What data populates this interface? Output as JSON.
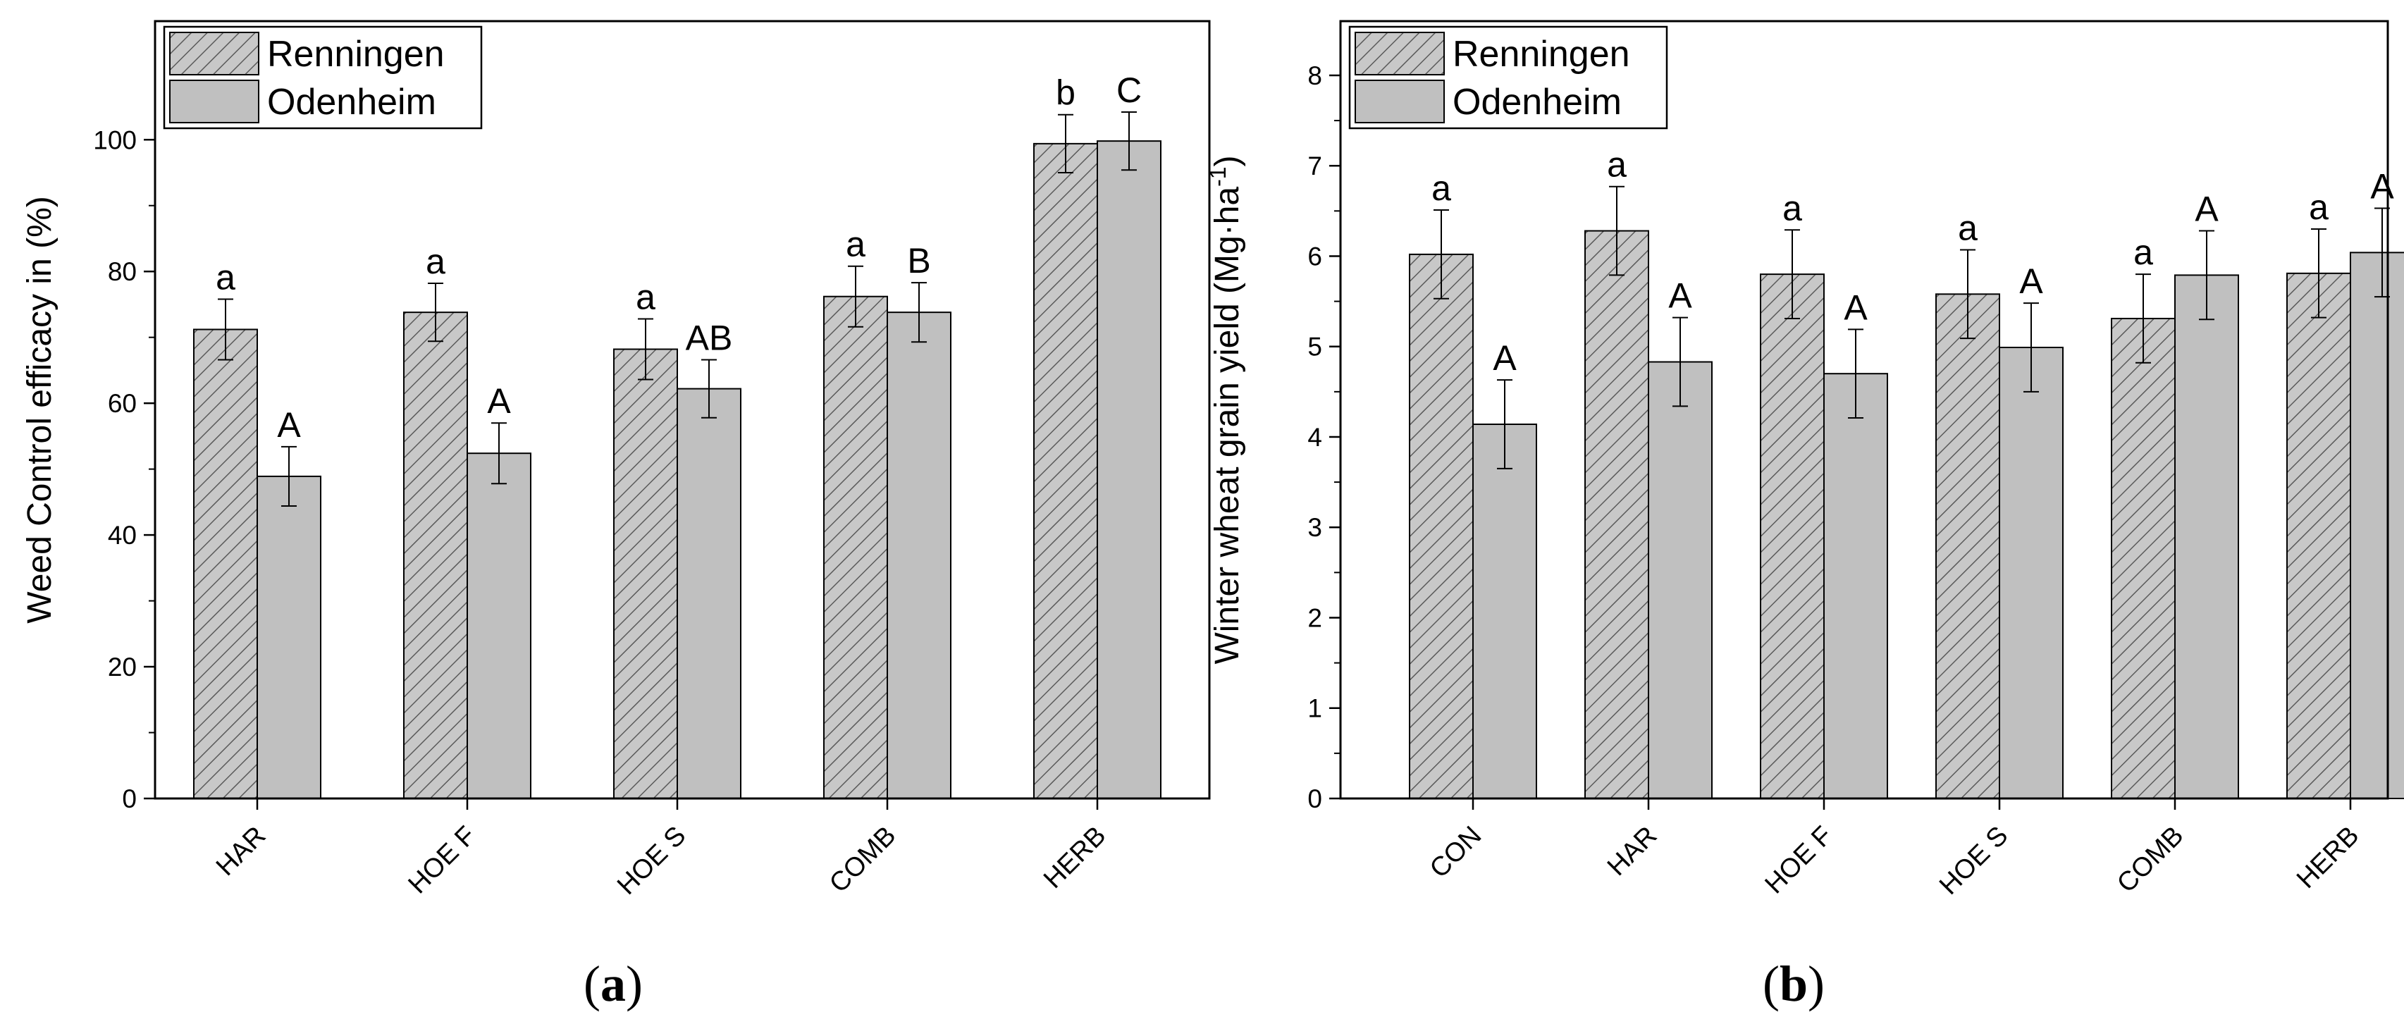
{
  "colors": {
    "bar_fill": "#c0c0c0",
    "hatch_bg": "#c8c8c8",
    "hatch_line": "#5a5a5a",
    "axis": "#000000"
  },
  "chart_data": [
    {
      "type": "bar",
      "panel_label": "(a)",
      "panel_label_parts": {
        "open": "(",
        "letter": "a",
        "close": ")"
      },
      "title": "",
      "xlabel": "",
      "ylabel": "Weed Control efficacy in (%)",
      "ylabel_parts": {
        "main": "Weed Control efficacy in (%)",
        "unit_base": "",
        "unit_sup": "",
        "unit_end": ""
      },
      "ylim": [
        0,
        118
      ],
      "yticks": [
        0,
        20,
        40,
        60,
        80,
        100
      ],
      "ytick_labels": [
        "0",
        "20",
        "40",
        "60",
        "80",
        "100"
      ],
      "legend_position": "top-left",
      "categories": [
        "HAR",
        "HOE F",
        "HOE S",
        "COMB",
        "HERB"
      ],
      "series": [
        {
          "name": "Renningen",
          "pattern": "hatched",
          "values": [
            71.2,
            73.8,
            68.2,
            76.2,
            99.4
          ],
          "errors": [
            4.6,
            4.4,
            4.6,
            4.6,
            4.4
          ],
          "letters": [
            "a",
            "a",
            "a",
            "a",
            "b"
          ]
        },
        {
          "name": "Odenheim",
          "pattern": "solid",
          "values": [
            48.9,
            52.4,
            62.2,
            73.8,
            99.8
          ],
          "errors": [
            4.5,
            4.6,
            4.4,
            4.5,
            4.4
          ],
          "letters": [
            "A",
            "A",
            "AB",
            "B",
            "C"
          ]
        }
      ]
    },
    {
      "type": "bar",
      "panel_label": "(b)",
      "panel_label_parts": {
        "open": "(",
        "letter": "b",
        "close": ")"
      },
      "title": "",
      "xlabel": "",
      "ylabel": "Winter wheat grain yield (Mg·ha-1)",
      "ylabel_parts": {
        "main": "Winter wheat grain yield (",
        "unit_base": "Mg·ha",
        "unit_sup": "-1",
        "unit_end": ")"
      },
      "ylim": [
        0,
        8.6
      ],
      "yticks": [
        0,
        1,
        2,
        3,
        4,
        5,
        6,
        7,
        8
      ],
      "ytick_labels": [
        "0",
        "1",
        "2",
        "3",
        "4",
        "5",
        "6",
        "7",
        "8"
      ],
      "legend_position": "top-left",
      "categories": [
        "CON",
        "HAR",
        "HOE F",
        "HOE S",
        "COMB",
        "HERB"
      ],
      "series": [
        {
          "name": "Renningen",
          "pattern": "hatched",
          "values": [
            6.02,
            6.28,
            5.8,
            5.58,
            5.31,
            5.81
          ],
          "errors": [
            0.49,
            0.49,
            0.49,
            0.49,
            0.49,
            0.49
          ],
          "letters": [
            "a",
            "a",
            "a",
            "a",
            "a",
            "a"
          ]
        },
        {
          "name": "Odenheim",
          "pattern": "solid",
          "values": [
            4.14,
            4.83,
            4.7,
            4.99,
            5.79,
            6.04
          ],
          "errors": [
            0.49,
            0.49,
            0.49,
            0.49,
            0.49,
            0.49
          ],
          "letters": [
            "A",
            "A",
            "A",
            "A",
            "A",
            "A"
          ]
        }
      ]
    }
  ]
}
